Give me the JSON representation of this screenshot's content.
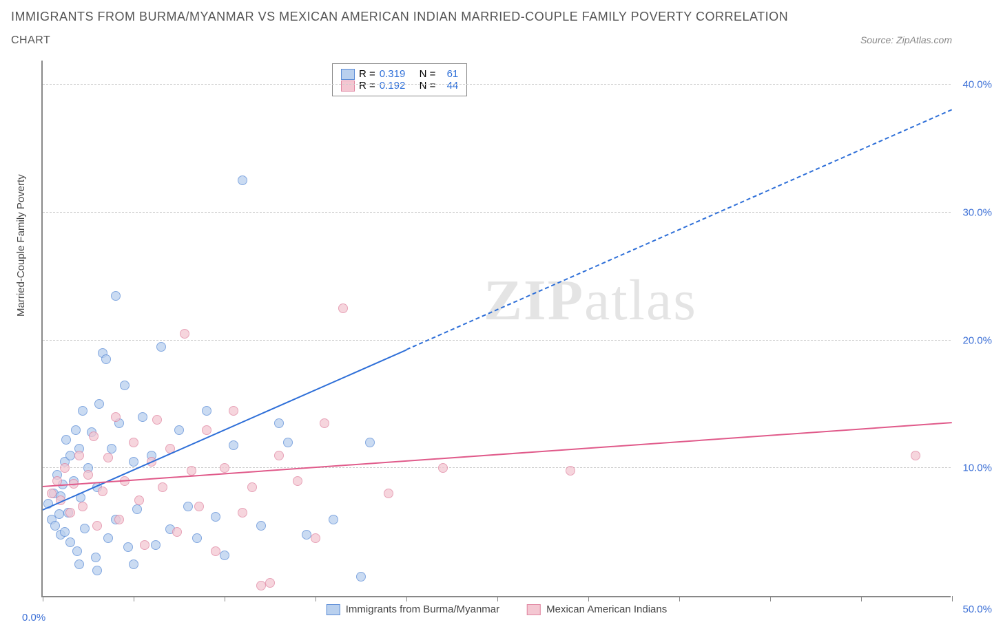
{
  "title": "IMMIGRANTS FROM BURMA/MYANMAR VS MEXICAN AMERICAN INDIAN MARRIED-COUPLE FAMILY POVERTY CORRELATION",
  "subtitle": "CHART",
  "source": "Source: ZipAtlas.com",
  "ylabel": "Married-Couple Family Poverty",
  "watermark_bold": "ZIP",
  "watermark_light": "atlas",
  "chart": {
    "type": "scatter",
    "xlim": [
      0,
      50
    ],
    "ylim": [
      0,
      42
    ],
    "background_color": "#ffffff",
    "grid_color": "#cccccc",
    "axis_color": "#888888",
    "xticks": [
      0,
      5,
      10,
      15,
      20,
      25,
      30,
      35,
      40,
      45,
      50
    ],
    "xtick_labels": {
      "0": "0.0%",
      "50": "50.0%"
    },
    "yticks": [
      10,
      20,
      30,
      40
    ],
    "ytick_labels": [
      "10.0%",
      "20.0%",
      "30.0%",
      "40.0%"
    ],
    "label_color": "#3b6fd6",
    "label_fontsize": 15,
    "point_radius": 7,
    "point_opacity": 0.75
  },
  "series": [
    {
      "name": "Immigrants from Burma/Myanmar",
      "fill": "#b9d0ee",
      "stroke": "#5a8bd6",
      "line_color": "#2e6fd8",
      "R": "0.319",
      "N": "61",
      "trend": {
        "x1": 0,
        "y1": 6.7,
        "x2": 50,
        "y2": 38,
        "solid_until_x": 20
      },
      "points": [
        [
          0.3,
          7.2
        ],
        [
          0.5,
          6.0
        ],
        [
          0.6,
          8.0
        ],
        [
          0.7,
          5.5
        ],
        [
          0.8,
          9.5
        ],
        [
          0.9,
          6.4
        ],
        [
          1.0,
          7.8
        ],
        [
          1.0,
          4.8
        ],
        [
          1.1,
          8.7
        ],
        [
          1.2,
          10.5
        ],
        [
          1.2,
          5.0
        ],
        [
          1.3,
          12.2
        ],
        [
          1.4,
          6.5
        ],
        [
          1.5,
          11.0
        ],
        [
          1.5,
          4.2
        ],
        [
          1.7,
          9.0
        ],
        [
          1.8,
          13.0
        ],
        [
          1.9,
          3.5
        ],
        [
          2.0,
          11.5
        ],
        [
          2.1,
          7.7
        ],
        [
          2.2,
          14.5
        ],
        [
          2.3,
          5.3
        ],
        [
          2.5,
          10.0
        ],
        [
          2.7,
          12.8
        ],
        [
          2.9,
          3.0
        ],
        [
          3.0,
          8.5
        ],
        [
          3.1,
          15.0
        ],
        [
          3.3,
          19.0
        ],
        [
          3.5,
          18.5
        ],
        [
          3.6,
          4.5
        ],
        [
          3.8,
          11.5
        ],
        [
          4.0,
          23.5
        ],
        [
          4.0,
          6.0
        ],
        [
          4.2,
          13.5
        ],
        [
          4.5,
          16.5
        ],
        [
          4.7,
          3.8
        ],
        [
          5.0,
          10.5
        ],
        [
          5.2,
          6.8
        ],
        [
          5.5,
          14.0
        ],
        [
          6.0,
          11.0
        ],
        [
          6.2,
          4.0
        ],
        [
          6.5,
          19.5
        ],
        [
          7.0,
          5.2
        ],
        [
          7.5,
          13.0
        ],
        [
          8.0,
          7.0
        ],
        [
          8.5,
          4.5
        ],
        [
          9.0,
          14.5
        ],
        [
          9.5,
          6.2
        ],
        [
          10.0,
          3.2
        ],
        [
          10.5,
          11.8
        ],
        [
          11.0,
          32.5
        ],
        [
          12.0,
          5.5
        ],
        [
          13.0,
          13.5
        ],
        [
          13.5,
          12.0
        ],
        [
          14.5,
          4.8
        ],
        [
          16.0,
          6.0
        ],
        [
          17.5,
          1.5
        ],
        [
          18.0,
          12.0
        ],
        [
          2.0,
          2.5
        ],
        [
          3.0,
          2.0
        ],
        [
          5.0,
          2.5
        ]
      ]
    },
    {
      "name": "Mexican American Indians",
      "fill": "#f4c7d2",
      "stroke": "#e084a0",
      "line_color": "#e05a8a",
      "R": "0.192",
      "N": "44",
      "trend": {
        "x1": 0,
        "y1": 8.5,
        "x2": 50,
        "y2": 13.5,
        "solid_until_x": 50
      },
      "points": [
        [
          0.5,
          8.0
        ],
        [
          0.8,
          9.0
        ],
        [
          1.0,
          7.5
        ],
        [
          1.2,
          10.0
        ],
        [
          1.5,
          6.5
        ],
        [
          1.7,
          8.8
        ],
        [
          2.0,
          11.0
        ],
        [
          2.2,
          7.0
        ],
        [
          2.5,
          9.5
        ],
        [
          2.8,
          12.5
        ],
        [
          3.0,
          5.5
        ],
        [
          3.3,
          8.2
        ],
        [
          3.6,
          10.8
        ],
        [
          4.0,
          14.0
        ],
        [
          4.2,
          6.0
        ],
        [
          4.5,
          9.0
        ],
        [
          5.0,
          12.0
        ],
        [
          5.3,
          7.5
        ],
        [
          5.6,
          4.0
        ],
        [
          6.0,
          10.5
        ],
        [
          6.3,
          13.8
        ],
        [
          6.6,
          8.5
        ],
        [
          7.0,
          11.5
        ],
        [
          7.4,
          5.0
        ],
        [
          7.8,
          20.5
        ],
        [
          8.2,
          9.8
        ],
        [
          8.6,
          7.0
        ],
        [
          9.0,
          13.0
        ],
        [
          9.5,
          3.5
        ],
        [
          10.0,
          10.0
        ],
        [
          10.5,
          14.5
        ],
        [
          11.0,
          6.5
        ],
        [
          11.5,
          8.5
        ],
        [
          12.0,
          0.8
        ],
        [
          12.5,
          1.0
        ],
        [
          13.0,
          11.0
        ],
        [
          14.0,
          9.0
        ],
        [
          15.0,
          4.5
        ],
        [
          15.5,
          13.5
        ],
        [
          16.5,
          22.5
        ],
        [
          19.0,
          8.0
        ],
        [
          22.0,
          10.0
        ],
        [
          29.0,
          9.8
        ],
        [
          48.0,
          11.0
        ]
      ]
    }
  ],
  "legend_stats": {
    "r_label": "R =",
    "n_label": "N ="
  },
  "bottom_legend": [
    {
      "label": "Immigrants from Burma/Myanmar",
      "fill": "#b9d0ee",
      "stroke": "#5a8bd6"
    },
    {
      "label": "Mexican American Indians",
      "fill": "#f4c7d2",
      "stroke": "#e084a0"
    }
  ]
}
